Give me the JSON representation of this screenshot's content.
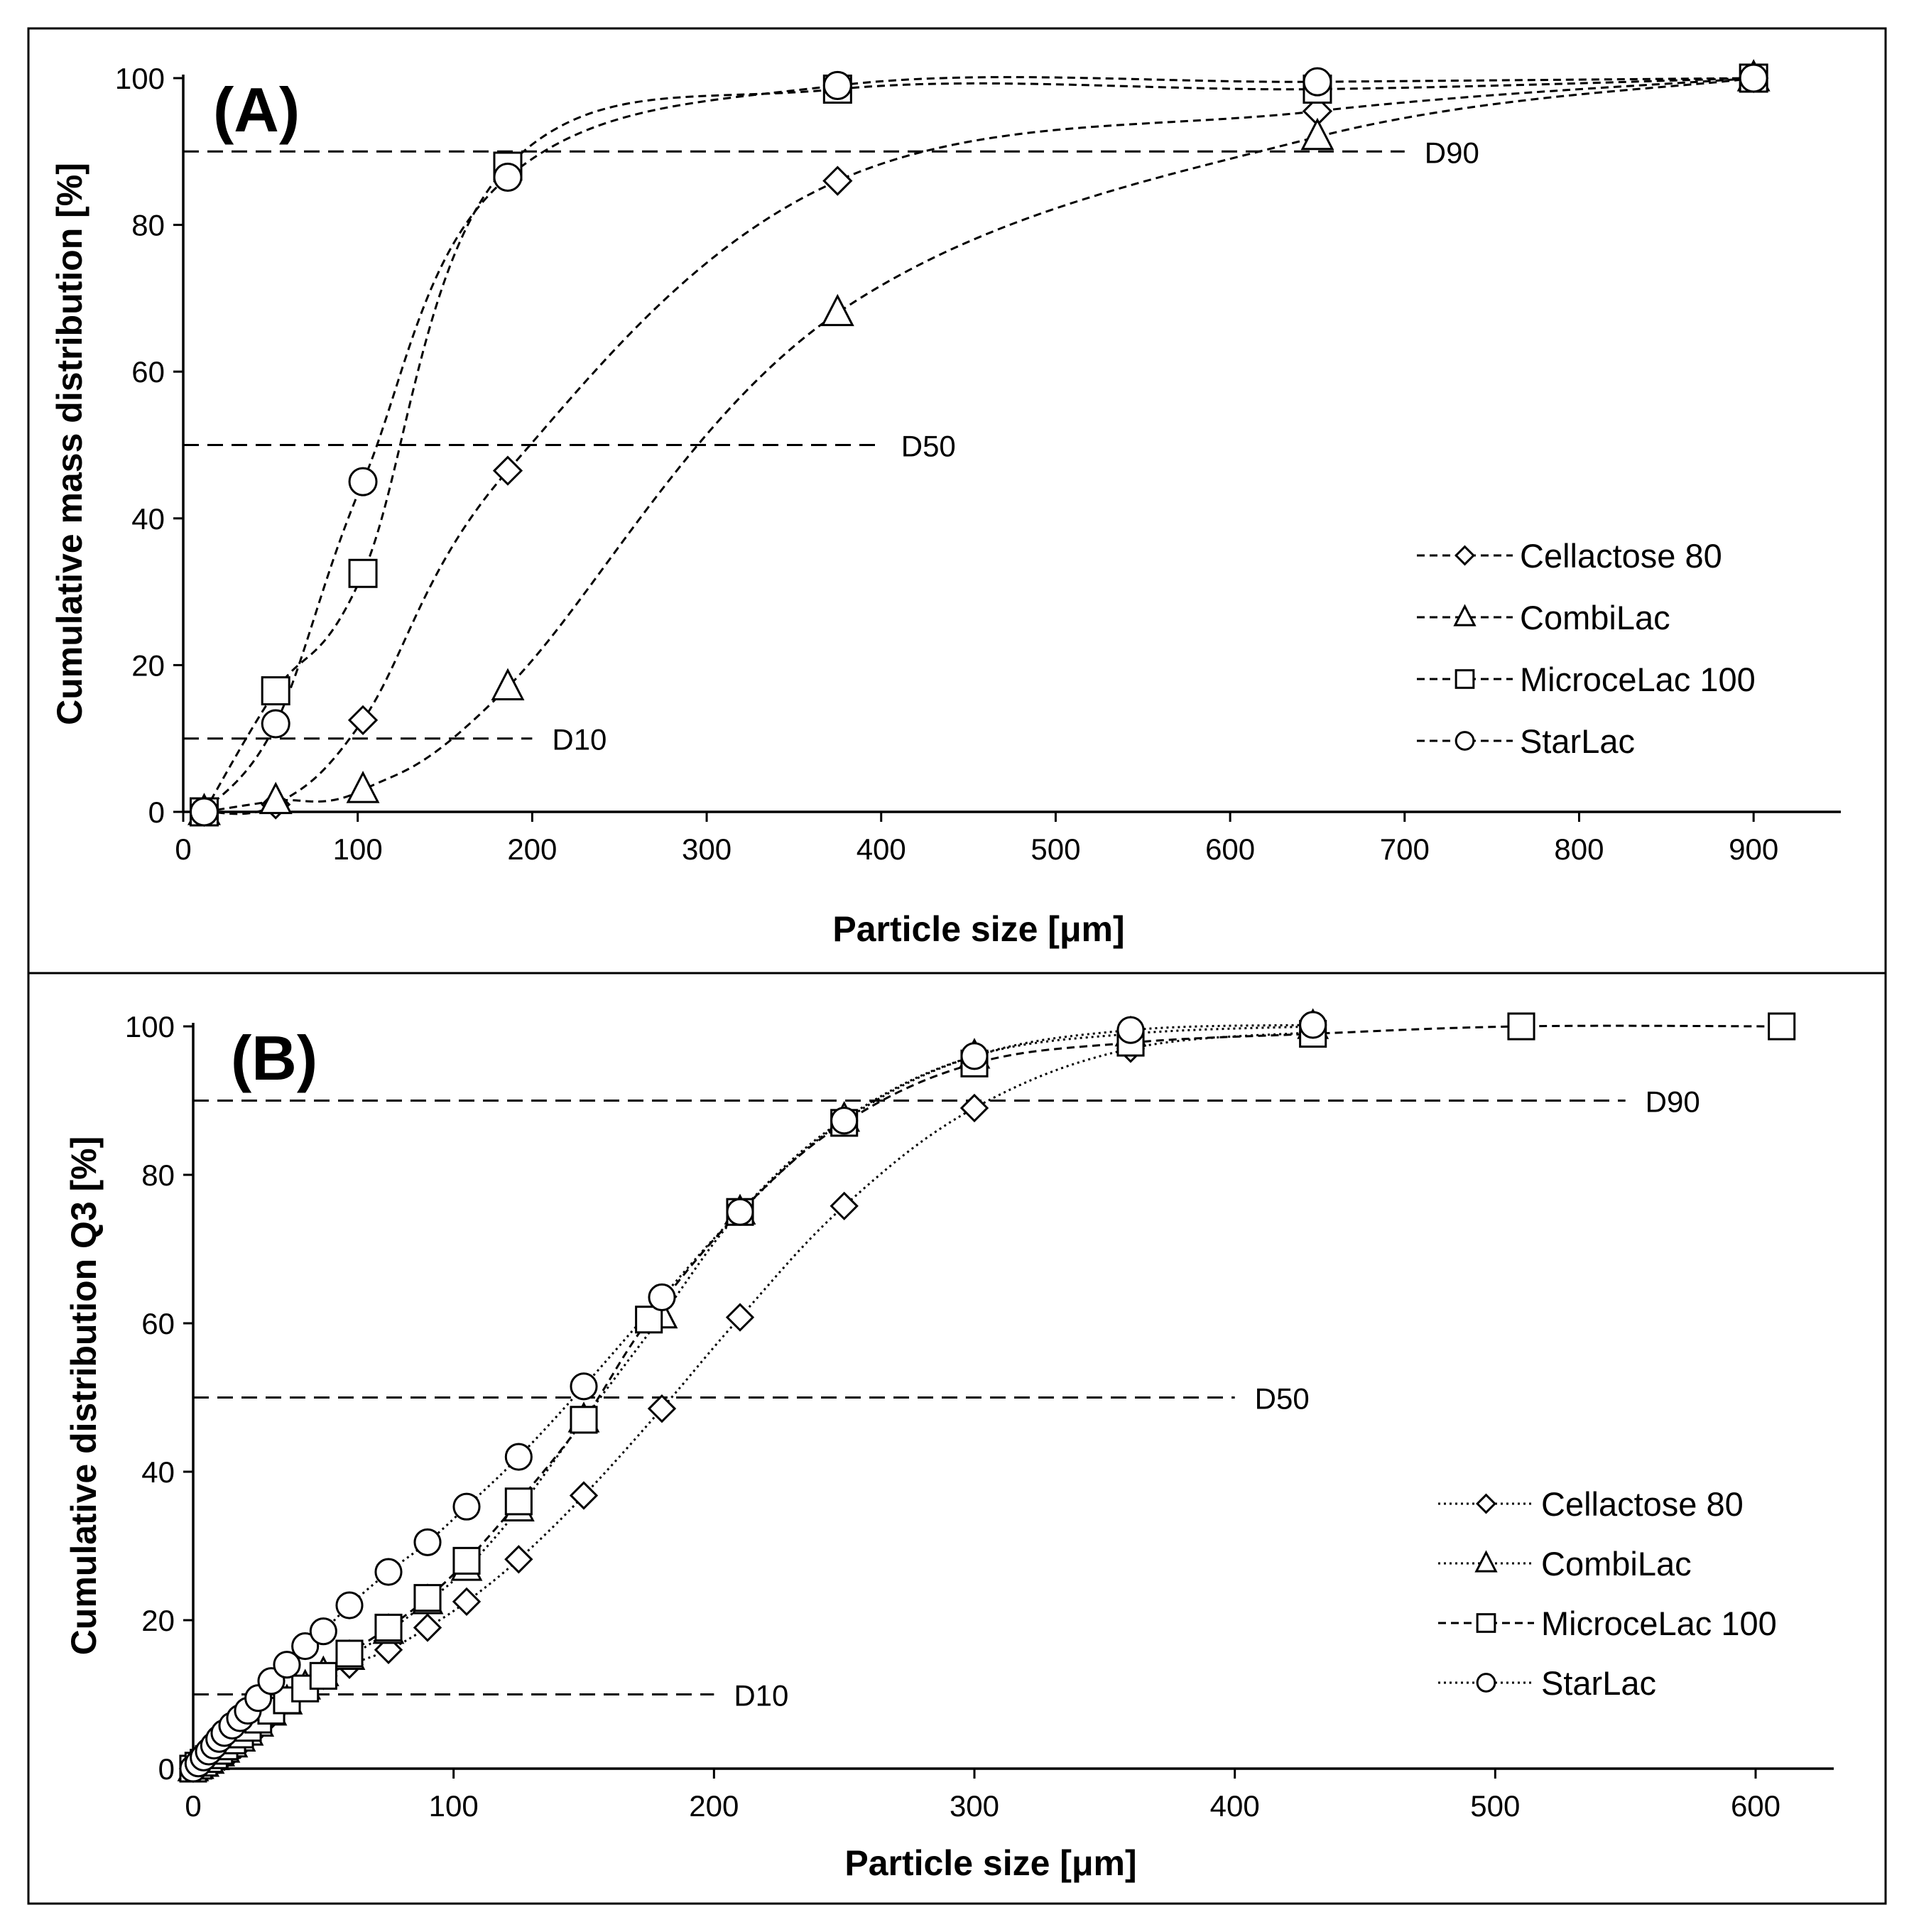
{
  "chart_data": [
    {
      "type": "line",
      "panel_label": "(A)",
      "xlabel": "Particle size [μm]",
      "ylabel": "Cumulative mass distribution [%]",
      "xlim": [
        0,
        950
      ],
      "ylim": [
        0,
        100
      ],
      "xticks": [
        "0",
        "100",
        "200",
        "300",
        "400",
        "500",
        "600",
        "700",
        "800",
        "900"
      ],
      "yticks": [
        "0",
        "20",
        "40",
        "60",
        "80",
        "100"
      ],
      "reference_lines": [
        {
          "label": "D10",
          "y": 10,
          "x_end": 200
        },
        {
          "label": "D50",
          "y": 50,
          "x_end": 400
        },
        {
          "label": "D90",
          "y": 90,
          "x_end": 700
        }
      ],
      "legend_position": "bottom-right",
      "series": [
        {
          "name": "Cellactose 80",
          "marker": "diamond",
          "line": "dashed",
          "x": [
            12,
            53,
            103,
            186,
            375,
            650,
            900
          ],
          "y": [
            0,
            1,
            12.5,
            46.5,
            86,
            95.5,
            100
          ]
        },
        {
          "name": "CombiLac",
          "marker": "triangle",
          "line": "dashed",
          "x": [
            12,
            53,
            103,
            186,
            375,
            650,
            900
          ],
          "y": [
            0,
            1.5,
            3,
            17,
            68,
            92,
            100
          ]
        },
        {
          "name": "MicroceLac 100",
          "marker": "square",
          "line": "dashed",
          "x": [
            12,
            53,
            103,
            186,
            375,
            650,
            900
          ],
          "y": [
            0,
            16.5,
            32.5,
            88,
            98.5,
            98.5,
            100
          ]
        },
        {
          "name": "StarLac",
          "marker": "circle",
          "line": "dashed",
          "x": [
            12,
            53,
            103,
            186,
            375,
            650,
            900
          ],
          "y": [
            0,
            12,
            45,
            86.5,
            99,
            99.5,
            100
          ]
        }
      ]
    },
    {
      "type": "line",
      "panel_label": "(B)",
      "xlabel": "Particle size [μm]",
      "ylabel": "Cumulative distribution Q3 [%]",
      "xlim": [
        0,
        630
      ],
      "ylim": [
        0,
        100
      ],
      "xticks": [
        "0",
        "100",
        "200",
        "300",
        "400",
        "500",
        "600"
      ],
      "yticks": [
        "0",
        "20",
        "40",
        "60",
        "80",
        "100"
      ],
      "reference_lines": [
        {
          "label": "D10",
          "y": 10,
          "x_end": 200
        },
        {
          "label": "D50",
          "y": 50,
          "x_end": 400
        },
        {
          "label": "D90",
          "y": 90,
          "x_end": 550
        }
      ],
      "legend_position": "bottom-right",
      "series": [
        {
          "name": "Cellactose 80",
          "marker": "diamond",
          "line": "dotted",
          "x": [
            0,
            2,
            4,
            6,
            8,
            10,
            12,
            15,
            18,
            21,
            25,
            30,
            36,
            43,
            50,
            60,
            75,
            90,
            105,
            125,
            150,
            180,
            210,
            250,
            300,
            360,
            430
          ],
          "y": [
            0,
            0.2,
            0.4,
            0.6,
            0.9,
            1.2,
            1.6,
            2.3,
            3.2,
            4.2,
            5.5,
            7.2,
            9.2,
            11,
            12.5,
            14,
            16,
            19,
            22.5,
            28.2,
            36.8,
            48.5,
            60.8,
            75.8,
            89,
            97,
            99.2
          ]
        },
        {
          "name": "CombiLac",
          "marker": "triangle",
          "line": "dotted",
          "x": [
            0,
            2,
            4,
            6,
            8,
            10,
            12,
            15,
            18,
            21,
            25,
            30,
            36,
            43,
            50,
            60,
            75,
            90,
            105,
            125,
            150,
            180,
            210,
            250,
            300,
            360,
            430
          ],
          "y": [
            0,
            0.3,
            0.6,
            1,
            1.5,
            2,
            2.5,
            3.2,
            4,
            4.8,
            6,
            7.5,
            9,
            11,
            12.8,
            15,
            18.5,
            22.5,
            27,
            35,
            47,
            61,
            75,
            87.5,
            96,
            99,
            100
          ]
        },
        {
          "name": "MicroceLac 100",
          "marker": "square",
          "line": "dashed",
          "x": [
            0,
            2,
            4,
            6,
            8,
            10,
            12,
            15,
            18,
            21,
            25,
            30,
            36,
            43,
            50,
            60,
            75,
            90,
            105,
            125,
            150,
            175,
            210,
            250,
            300,
            360,
            430,
            510,
            610
          ],
          "y": [
            0,
            0.4,
            0.8,
            1.3,
            1.8,
            2.4,
            3,
            3.8,
            4.6,
            5.5,
            6.6,
            7.8,
            9.2,
            10.8,
            12.5,
            15.5,
            19,
            23,
            28,
            36,
            47,
            60.5,
            75,
            87,
            95,
            97.8,
            99,
            100,
            100
          ]
        },
        {
          "name": "StarLac",
          "marker": "circle",
          "line": "dotted",
          "x": [
            0,
            2,
            4,
            6,
            8,
            10,
            12,
            15,
            18,
            21,
            25,
            30,
            36,
            43,
            50,
            60,
            75,
            90,
            105,
            125,
            150,
            180,
            210,
            250,
            300,
            360,
            430
          ],
          "y": [
            0,
            0.7,
            1.5,
            2.3,
            3.1,
            4,
            4.8,
            5.8,
            6.8,
            7.8,
            9.5,
            11.8,
            14,
            16.5,
            18.5,
            22,
            26.5,
            30.5,
            35.3,
            42,
            51.5,
            63.5,
            75,
            87.3,
            96,
            99.5,
            100.2
          ]
        }
      ]
    }
  ]
}
